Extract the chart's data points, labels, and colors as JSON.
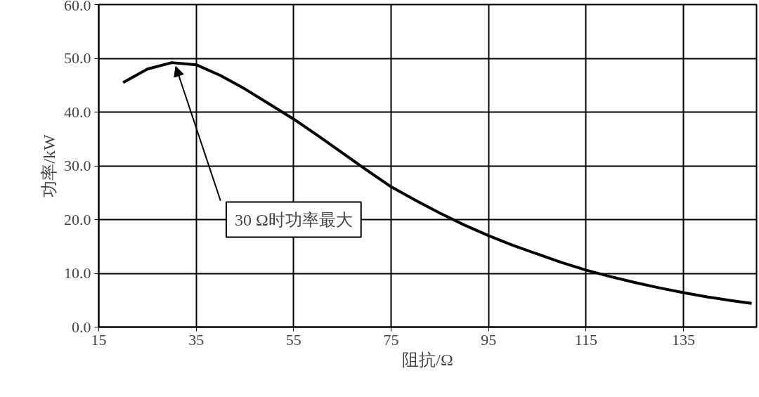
{
  "chart_data": {
    "type": "line",
    "xlabel": "阻抗/Ω",
    "ylabel": "功率/kW",
    "x": [
      20,
      25,
      30,
      35,
      40,
      45,
      50,
      55,
      60,
      65,
      70,
      75,
      80,
      85,
      90,
      95,
      100,
      105,
      110,
      115,
      120,
      125,
      130,
      135,
      140,
      145,
      149
    ],
    "series": [
      {
        "color": "#000000",
        "values": [
          45.5,
          48.0,
          49.2,
          48.8,
          46.8,
          44.3,
          41.5,
          38.7,
          35.6,
          32.4,
          29.2,
          26.1,
          23.6,
          21.2,
          19.0,
          17.0,
          15.2,
          13.6,
          12.0,
          10.6,
          9.4,
          8.3,
          7.3,
          6.4,
          5.6,
          4.9,
          4.4
        ]
      }
    ],
    "xlim": [
      15,
      150
    ],
    "ylim": [
      0,
      60
    ],
    "xticks": [
      15,
      35,
      55,
      75,
      95,
      115,
      135
    ],
    "yticks": [
      {
        "value": 0,
        "label": "0.0"
      },
      {
        "value": 10,
        "label": "10.0"
      },
      {
        "value": 20,
        "label": "20.0"
      },
      {
        "value": 30,
        "label": "30.0"
      },
      {
        "value": 40,
        "label": "40.0"
      },
      {
        "value": 50,
        "label": "50.0"
      },
      {
        "value": 60,
        "label": "60.0"
      }
    ],
    "grid": true,
    "marker": "none",
    "line_style": "solid",
    "annotations": [
      {
        "text": "30 Ω时功率最大",
        "x": 30,
        "y": 49
      }
    ]
  }
}
